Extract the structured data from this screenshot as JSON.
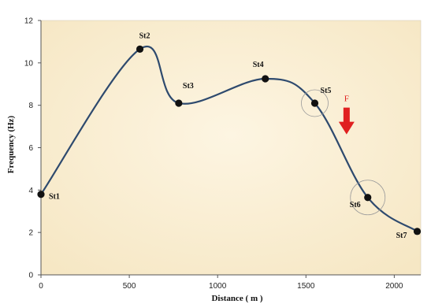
{
  "chart_data": {
    "type": "line",
    "xlabel": "Distance ( m )",
    "ylabel": "Frequency (Hz)",
    "xlim": [
      0,
      2150
    ],
    "ylim": [
      0,
      12
    ],
    "xticks": [
      0,
      500,
      1000,
      1500,
      2000
    ],
    "yticks": [
      0,
      2,
      4,
      6,
      8,
      10,
      12
    ],
    "grid": false,
    "smooth": true,
    "background": "#fbf1d8",
    "line_color": "#2e4a6e",
    "marker_color": "#111111",
    "points": [
      {
        "label": "St1",
        "x": 0,
        "y": 3.8
      },
      {
        "label": "St2",
        "x": 560,
        "y": 10.65
      },
      {
        "label": "St3",
        "x": 780,
        "y": 8.1
      },
      {
        "label": "St4",
        "x": 1270,
        "y": 9.25
      },
      {
        "label": "St5",
        "x": 1550,
        "y": 8.1
      },
      {
        "label": "St6",
        "x": 1850,
        "y": 3.65
      },
      {
        "label": "St7",
        "x": 2130,
        "y": 2.05
      }
    ],
    "circled_points": [
      "St5",
      "St6"
    ],
    "annotation": {
      "text": "F",
      "color": "#e02020",
      "symbol": "down-arrow",
      "x": 1730,
      "y": 7.0
    }
  }
}
